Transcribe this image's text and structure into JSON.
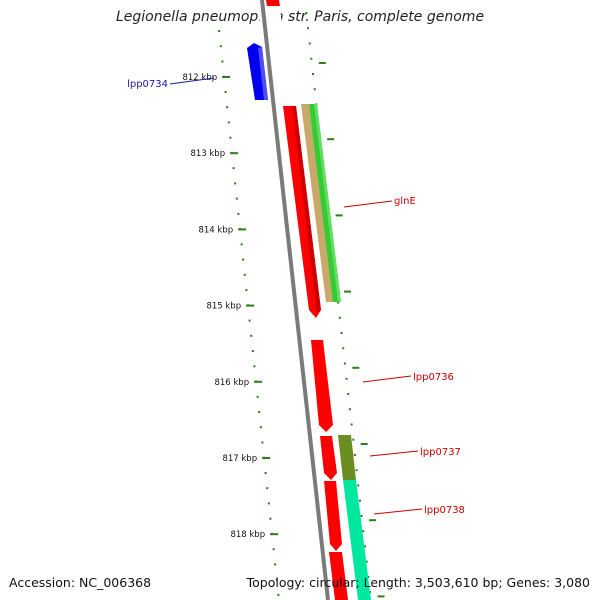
{
  "title": "Legionella pneumophila str. Paris, complete genome",
  "footer": {
    "accession": "Accession: NC_006368",
    "summary": "Topology: circular; Length: 3,503,610 bp; Genes: 3,080"
  },
  "colors": {
    "backbone": "#7a7a7a",
    "tick": "#2e7d1e",
    "cds_forward": "#ff0000",
    "cds_reverse": "#0000ee",
    "label_forward": "#cc0000",
    "label_reverse": "#1a1aa0",
    "gene_green": "#33cc33",
    "gene_tan": "#c8a96a",
    "gene_olive": "#6b8e23",
    "gene_spring": "#00e8a0"
  },
  "scale_labels": [
    "812 kbp",
    "813 kbp",
    "814 kbp",
    "815 kbp",
    "816 kbp",
    "817 kbp",
    "818 kbp"
  ],
  "gene_labels": {
    "lpp0734": "lpp0734",
    "glnE": "glnE",
    "lpp0736": "lpp0736",
    "lpp0737": "lpp0737",
    "lpp0738": "lpp0738"
  }
}
